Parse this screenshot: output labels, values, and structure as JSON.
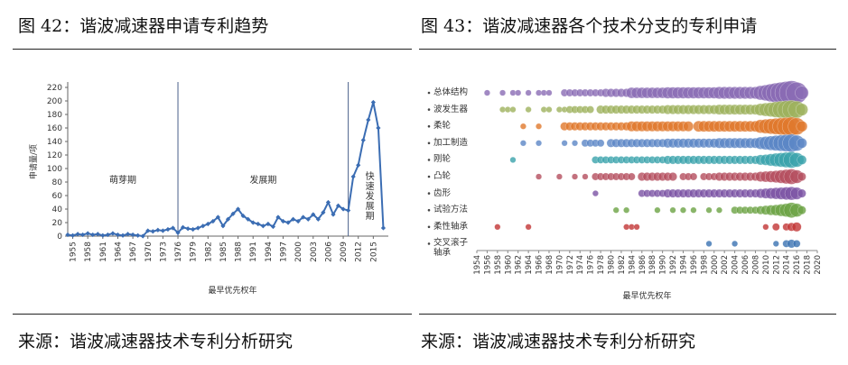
{
  "chart_data": [
    {
      "type": "line",
      "title": "图 42：谐波减速器申请专利趋势",
      "source": "来源：谐波减速器技术专利分析研究",
      "xlabel": "最早优先权年",
      "ylabel": "申请量/项",
      "x": [
        1954,
        1955,
        1956,
        1957,
        1958,
        1959,
        1960,
        1961,
        1962,
        1963,
        1964,
        1965,
        1966,
        1967,
        1968,
        1969,
        1970,
        1971,
        1972,
        1973,
        1974,
        1975,
        1976,
        1977,
        1978,
        1979,
        1980,
        1981,
        1982,
        1983,
        1984,
        1985,
        1986,
        1987,
        1988,
        1989,
        1990,
        1991,
        1992,
        1993,
        1994,
        1995,
        1996,
        1997,
        1998,
        1999,
        2000,
        2001,
        2002,
        2003,
        2004,
        2005,
        2006,
        2007,
        2008,
        2009,
        2010,
        2011,
        2012,
        2013,
        2014,
        2015,
        2016,
        2017
      ],
      "values": [
        2,
        1,
        3,
        2,
        4,
        2,
        3,
        1,
        2,
        4,
        2,
        1,
        3,
        2,
        1,
        0,
        8,
        7,
        9,
        8,
        10,
        12,
        5,
        13,
        11,
        10,
        12,
        15,
        18,
        22,
        28,
        15,
        25,
        33,
        40,
        30,
        25,
        20,
        18,
        15,
        18,
        14,
        28,
        22,
        20,
        25,
        22,
        28,
        25,
        32,
        25,
        35,
        50,
        32,
        45,
        40,
        38,
        88,
        105,
        142,
        172,
        198,
        160,
        12
      ],
      "color": "#3b6db3",
      "xlim": [
        1954,
        2018
      ],
      "xticks": [
        1955,
        1958,
        1961,
        1964,
        1967,
        1970,
        1973,
        1976,
        1979,
        1982,
        1985,
        1988,
        1991,
        1994,
        1997,
        2000,
        2003,
        2006,
        2009,
        2012,
        2015
      ],
      "ylim": [
        0,
        220
      ],
      "yticks": [
        0,
        20,
        40,
        60,
        80,
        100,
        120,
        140,
        160,
        180,
        200,
        220
      ],
      "dividers": [
        1976,
        2010
      ],
      "phases": [
        "萌芽期",
        "发展期",
        "快速发展期"
      ]
    },
    {
      "type": "bubble",
      "title": "图 43：谐波减速器各个技术分支的专利申请",
      "source": "来源：谐波减速器技术专利分析研究",
      "xlabel": "最早优先权年",
      "x": [
        1954,
        1955,
        1956,
        1957,
        1958,
        1959,
        1960,
        1961,
        1962,
        1963,
        1964,
        1965,
        1966,
        1967,
        1968,
        1969,
        1970,
        1971,
        1972,
        1973,
        1974,
        1975,
        1976,
        1977,
        1978,
        1979,
        1980,
        1981,
        1982,
        1983,
        1984,
        1985,
        1986,
        1987,
        1988,
        1989,
        1990,
        1991,
        1992,
        1993,
        1994,
        1995,
        1996,
        1997,
        1998,
        1999,
        2000,
        2001,
        2002,
        2003,
        2004,
        2005,
        2006,
        2007,
        2008,
        2009,
        2010,
        2011,
        2012,
        2013,
        2014,
        2015,
        2016,
        2017
      ],
      "xlim": [
        1954,
        2020
      ],
      "xticks": [
        1954,
        1956,
        1958,
        1960,
        1962,
        1964,
        1966,
        1968,
        1970,
        1972,
        1974,
        1976,
        1978,
        1980,
        1982,
        1984,
        1986,
        1988,
        1990,
        1992,
        1994,
        1996,
        1998,
        2000,
        2002,
        2004,
        2006,
        2008,
        2010,
        2012,
        2014,
        2016,
        2018,
        2020
      ],
      "series": [
        {
          "name": "总体结构",
          "color": "#8a6bb4",
          "values": [
            null,
            null,
            1,
            null,
            null,
            1,
            null,
            1,
            1,
            null,
            1,
            null,
            1,
            1,
            1,
            null,
            null,
            2,
            2,
            2,
            2,
            2,
            2,
            2,
            2,
            3,
            3,
            3,
            3,
            3,
            6,
            6,
            6,
            6,
            6,
            6,
            6,
            7,
            7,
            7,
            7,
            7,
            7,
            7,
            7,
            7,
            7,
            8,
            8,
            8,
            8,
            8,
            8,
            8,
            8,
            12,
            15,
            20,
            25,
            30,
            35,
            40,
            30,
            10
          ]
        },
        {
          "name": "波发生器",
          "color": "#9db25c",
          "values": [
            null,
            null,
            null,
            null,
            null,
            1,
            1,
            1,
            null,
            null,
            1,
            null,
            null,
            1,
            1,
            null,
            1,
            1,
            2,
            2,
            2,
            2,
            2,
            null,
            3,
            3,
            3,
            3,
            3,
            3,
            3,
            3,
            3,
            3,
            3,
            3,
            3,
            4,
            4,
            4,
            4,
            4,
            4,
            4,
            4,
            4,
            4,
            5,
            5,
            5,
            5,
            5,
            5,
            5,
            5,
            8,
            10,
            12,
            15,
            18,
            20,
            22,
            18,
            8
          ]
        },
        {
          "name": "柔轮",
          "color": "#e0782c",
          "values": [
            null,
            null,
            null,
            null,
            null,
            null,
            null,
            null,
            null,
            1,
            null,
            null,
            1,
            null,
            null,
            null,
            null,
            3,
            3,
            3,
            3,
            3,
            3,
            3,
            3,
            3,
            3,
            3,
            3,
            3,
            5,
            5,
            5,
            5,
            5,
            5,
            5,
            5,
            5,
            5,
            5,
            5,
            null,
            6,
            6,
            6,
            6,
            6,
            6,
            6,
            6,
            6,
            6,
            6,
            6,
            10,
            12,
            14,
            16,
            18,
            20,
            22,
            18,
            6
          ]
        },
        {
          "name": "加工制造",
          "color": "#5b86c6",
          "values": [
            null,
            null,
            null,
            null,
            null,
            null,
            null,
            null,
            null,
            1,
            null,
            null,
            1,
            null,
            null,
            null,
            null,
            1,
            null,
            1,
            null,
            2,
            2,
            2,
            2,
            null,
            3,
            3,
            3,
            3,
            3,
            3,
            3,
            3,
            3,
            3,
            3,
            4,
            4,
            4,
            4,
            4,
            4,
            4,
            4,
            4,
            4,
            5,
            5,
            5,
            5,
            5,
            5,
            5,
            5,
            8,
            10,
            12,
            14,
            16,
            18,
            20,
            15,
            5
          ]
        },
        {
          "name": "刚轮",
          "color": "#3aa3ab",
          "values": [
            null,
            null,
            null,
            null,
            null,
            null,
            null,
            1,
            null,
            null,
            null,
            null,
            null,
            null,
            null,
            null,
            null,
            null,
            null,
            null,
            null,
            null,
            null,
            2,
            2,
            2,
            2,
            2,
            2,
            2,
            2,
            2,
            2,
            2,
            2,
            2,
            2,
            3,
            3,
            3,
            3,
            3,
            3,
            3,
            3,
            3,
            3,
            3,
            3,
            3,
            3,
            3,
            3,
            3,
            3,
            5,
            6,
            8,
            10,
            12,
            14,
            16,
            12,
            4
          ]
        },
        {
          "name": "凸轮",
          "color": "#b44d5e",
          "values": [
            null,
            null,
            null,
            null,
            null,
            null,
            null,
            null,
            null,
            null,
            null,
            null,
            1,
            null,
            null,
            null,
            1,
            null,
            null,
            1,
            null,
            1,
            null,
            2,
            2,
            2,
            2,
            2,
            2,
            2,
            2,
            null,
            3,
            3,
            3,
            3,
            3,
            3,
            3,
            null,
            2,
            2,
            2,
            null,
            2,
            2,
            2,
            3,
            3,
            3,
            3,
            3,
            3,
            3,
            3,
            5,
            6,
            7,
            8,
            10,
            12,
            14,
            10,
            3
          ]
        },
        {
          "name": "齿形",
          "color": "#7a52a4",
          "values": [
            null,
            null,
            null,
            null,
            null,
            null,
            null,
            null,
            null,
            null,
            null,
            null,
            null,
            null,
            null,
            null,
            null,
            null,
            null,
            null,
            null,
            null,
            null,
            1,
            null,
            null,
            null,
            null,
            null,
            null,
            null,
            null,
            2,
            2,
            2,
            2,
            2,
            3,
            3,
            3,
            3,
            3,
            3,
            3,
            3,
            3,
            3,
            3,
            3,
            3,
            3,
            3,
            3,
            3,
            3,
            4,
            5,
            6,
            7,
            8,
            9,
            10,
            8,
            3
          ]
        },
        {
          "name": "试验方法",
          "color": "#6ba343",
          "values": [
            null,
            null,
            null,
            null,
            null,
            null,
            null,
            null,
            null,
            null,
            null,
            null,
            null,
            null,
            null,
            null,
            null,
            null,
            null,
            null,
            null,
            null,
            null,
            null,
            null,
            null,
            null,
            1,
            null,
            1,
            null,
            null,
            null,
            null,
            null,
            1,
            null,
            null,
            1,
            null,
            1,
            null,
            1,
            null,
            null,
            1,
            null,
            1,
            null,
            null,
            2,
            2,
            2,
            2,
            2,
            3,
            4,
            5,
            6,
            8,
            10,
            14,
            10,
            3
          ]
        },
        {
          "name": "柔性轴承",
          "color": "#c23434",
          "values": [
            null,
            null,
            null,
            null,
            1,
            null,
            null,
            null,
            null,
            null,
            1,
            null,
            null,
            null,
            null,
            null,
            null,
            null,
            null,
            null,
            null,
            null,
            null,
            null,
            null,
            null,
            null,
            null,
            null,
            1,
            1,
            1,
            null,
            null,
            null,
            null,
            null,
            null,
            null,
            null,
            null,
            null,
            null,
            null,
            null,
            null,
            null,
            null,
            null,
            null,
            null,
            null,
            null,
            null,
            null,
            null,
            1,
            null,
            2,
            null,
            2,
            3,
            4,
            null
          ]
        },
        {
          "name": "交叉滚子\n轴承",
          "color": "#3a72b2",
          "values": [
            null,
            null,
            null,
            null,
            null,
            null,
            null,
            null,
            null,
            null,
            null,
            null,
            null,
            null,
            null,
            null,
            null,
            null,
            null,
            null,
            null,
            null,
            null,
            null,
            null,
            null,
            null,
            null,
            null,
            null,
            null,
            null,
            null,
            null,
            null,
            null,
            null,
            null,
            null,
            null,
            null,
            null,
            null,
            null,
            null,
            1,
            null,
            null,
            null,
            null,
            1,
            null,
            null,
            null,
            null,
            null,
            null,
            null,
            1,
            null,
            2,
            3,
            2,
            null
          ]
        }
      ]
    }
  ]
}
